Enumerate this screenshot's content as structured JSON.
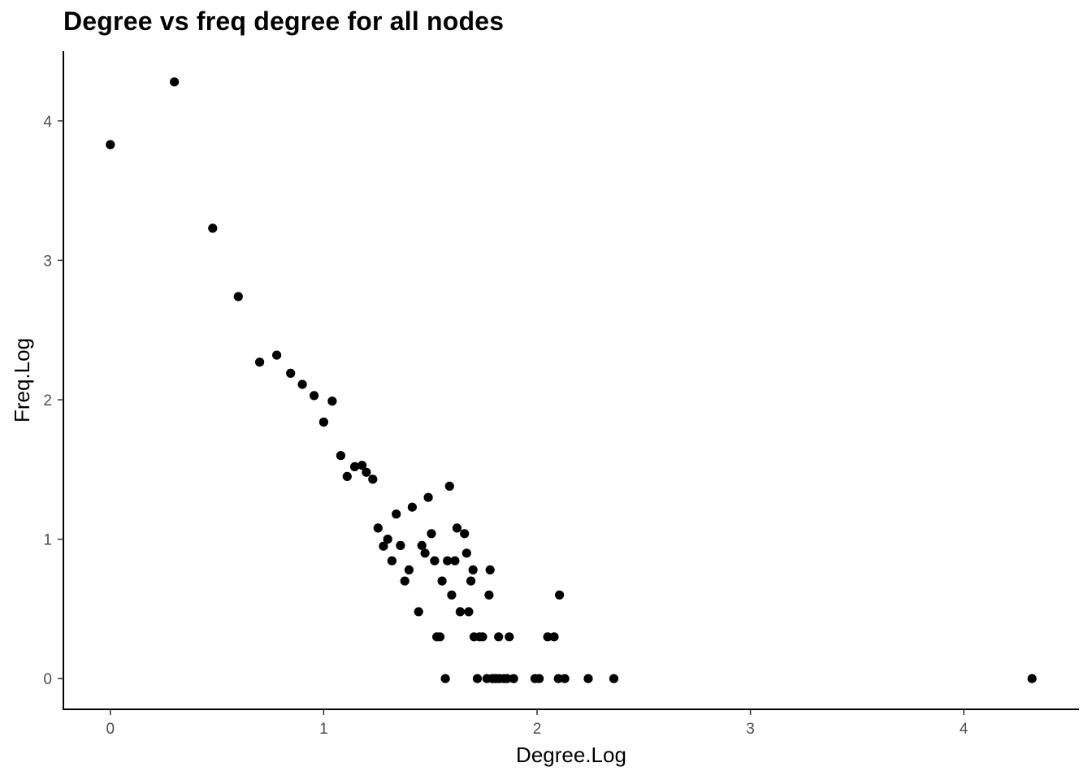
{
  "chart_data": {
    "type": "scatter",
    "title": "Degree vs freq degree for all nodes",
    "xlabel": "Degree.Log",
    "ylabel": "Freq.Log",
    "xlim": [
      -0.22,
      4.54
    ],
    "ylim": [
      -0.22,
      4.5
    ],
    "xticks": [
      0,
      1,
      2,
      3,
      4
    ],
    "yticks": [
      0,
      1,
      2,
      3,
      4
    ],
    "grid": false,
    "point_color": "#000000",
    "points": [
      [
        0.0,
        3.83
      ],
      [
        0.3,
        4.28
      ],
      [
        0.48,
        3.23
      ],
      [
        0.6,
        2.74
      ],
      [
        0.7,
        2.27
      ],
      [
        0.78,
        2.32
      ],
      [
        0.845,
        2.19
      ],
      [
        0.9,
        2.11
      ],
      [
        0.955,
        2.03
      ],
      [
        1.0,
        1.84
      ],
      [
        1.04,
        1.99
      ],
      [
        1.08,
        1.6
      ],
      [
        1.11,
        1.45
      ],
      [
        1.145,
        1.52
      ],
      [
        1.18,
        1.53
      ],
      [
        1.2,
        1.48
      ],
      [
        1.23,
        1.43
      ],
      [
        1.255,
        1.08
      ],
      [
        1.28,
        0.95
      ],
      [
        1.3,
        1.0
      ],
      [
        1.32,
        0.845
      ],
      [
        1.34,
        1.18
      ],
      [
        1.36,
        0.955
      ],
      [
        1.38,
        0.7
      ],
      [
        1.4,
        0.78
      ],
      [
        1.415,
        1.23
      ],
      [
        1.445,
        0.48
      ],
      [
        1.46,
        0.955
      ],
      [
        1.475,
        0.9
      ],
      [
        1.49,
        1.3
      ],
      [
        1.505,
        1.04
      ],
      [
        1.52,
        0.845
      ],
      [
        1.53,
        0.3
      ],
      [
        1.545,
        0.3
      ],
      [
        1.555,
        0.7
      ],
      [
        1.57,
        0.0
      ],
      [
        1.58,
        0.845
      ],
      [
        1.59,
        1.38
      ],
      [
        1.6,
        0.6
      ],
      [
        1.615,
        0.845
      ],
      [
        1.625,
        1.08
      ],
      [
        1.64,
        0.48
      ],
      [
        1.66,
        1.04
      ],
      [
        1.67,
        0.9
      ],
      [
        1.68,
        0.48
      ],
      [
        1.69,
        0.7
      ],
      [
        1.7,
        0.78
      ],
      [
        1.705,
        0.3
      ],
      [
        1.72,
        0.0
      ],
      [
        1.73,
        0.3
      ],
      [
        1.745,
        0.3
      ],
      [
        1.765,
        0.0
      ],
      [
        1.775,
        0.6
      ],
      [
        1.78,
        0.78
      ],
      [
        1.79,
        0.0
      ],
      [
        1.8,
        0.0
      ],
      [
        1.81,
        0.0
      ],
      [
        1.82,
        0.3
      ],
      [
        1.825,
        0.0
      ],
      [
        1.845,
        0.0
      ],
      [
        1.86,
        0.0
      ],
      [
        1.87,
        0.3
      ],
      [
        1.89,
        0.0
      ],
      [
        1.99,
        0.0
      ],
      [
        2.01,
        0.0
      ],
      [
        2.05,
        0.3
      ],
      [
        2.08,
        0.3
      ],
      [
        2.1,
        0.0
      ],
      [
        2.105,
        0.6
      ],
      [
        2.13,
        0.0
      ],
      [
        2.24,
        0.0
      ],
      [
        2.36,
        0.0
      ],
      [
        4.32,
        0.0
      ]
    ]
  }
}
